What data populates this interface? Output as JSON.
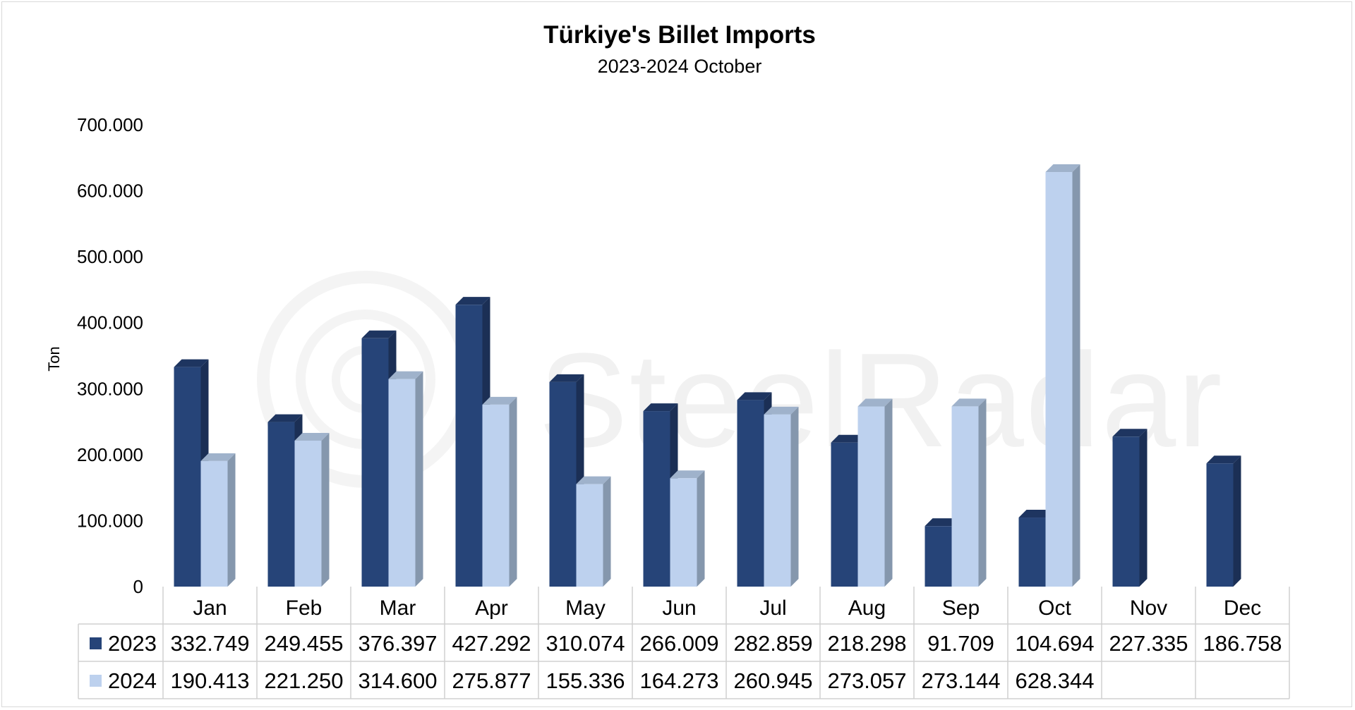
{
  "chart_data": {
    "type": "bar",
    "title": "Türkiye's Billet Imports",
    "subtitle": "2023-2024 October",
    "ylabel": "Ton",
    "ylim": [
      0,
      700000
    ],
    "yticks": [
      "0",
      "100.000",
      "200.000",
      "300.000",
      "400.000",
      "500.000",
      "600.000",
      "700.000"
    ],
    "categories": [
      "Jan",
      "Feb",
      "Mar",
      "Apr",
      "May",
      "Jun",
      "Jul",
      "Aug",
      "Sep",
      "Oct",
      "Nov",
      "Dec"
    ],
    "series": [
      {
        "name": "2023",
        "color": "#264478",
        "values": [
          332749,
          249455,
          376397,
          427292,
          310074,
          266009,
          282859,
          218298,
          91709,
          104694,
          227335,
          186758
        ],
        "labels": [
          "332.749",
          "249.455",
          "376.397",
          "427.292",
          "310.074",
          "266.009",
          "282.859",
          "218.298",
          "91.709",
          "104.694",
          "227.335",
          "186.758"
        ]
      },
      {
        "name": "2024",
        "color": "#bdd1ee",
        "values": [
          190413,
          221250,
          314600,
          275877,
          155336,
          164273,
          260945,
          273057,
          273144,
          628344,
          null,
          null
        ],
        "labels": [
          "190.413",
          "221.250",
          "314.600",
          "275.877",
          "155.336",
          "164.273",
          "260.945",
          "273.057",
          "273.144",
          "628.344",
          "",
          ""
        ]
      }
    ],
    "legend": "data-table",
    "grid": false
  },
  "watermark": {
    "text": "SteelRadar"
  }
}
